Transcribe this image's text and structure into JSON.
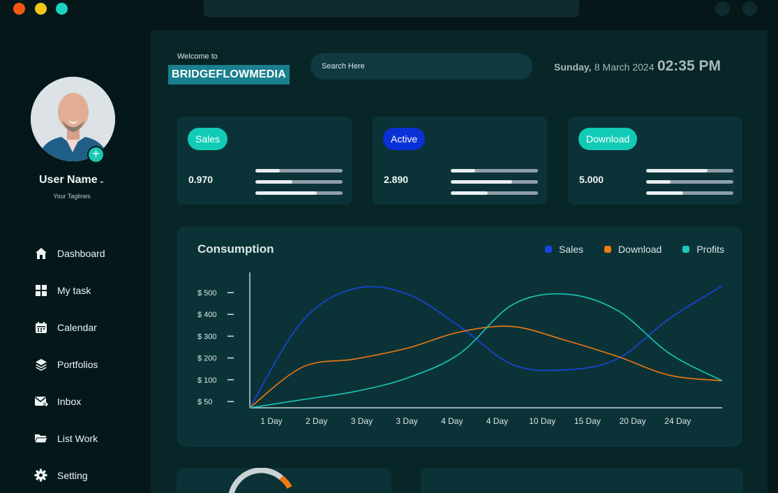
{
  "window": {
    "dot_colors": [
      "#f6580f",
      "#f5c518",
      "#19d3c0"
    ]
  },
  "user": {
    "name": "User Name",
    "tagline": "Your Taglines",
    "add_icon": "plus-icon"
  },
  "nav": [
    {
      "label": "Dashboard",
      "icon": "home-icon"
    },
    {
      "label": "My task",
      "icon": "grid-icon"
    },
    {
      "label": "Calendar",
      "icon": "calendar-icon"
    },
    {
      "label": "Portfolios",
      "icon": "layers-icon"
    },
    {
      "label": "Inbox",
      "icon": "mail-icon"
    },
    {
      "label": "List Work",
      "icon": "folder-icon"
    },
    {
      "label": "Setting",
      "icon": "gear-icon"
    }
  ],
  "header": {
    "welcome": "Welcome to",
    "brand": "BRIDGEFLOWMEDIA",
    "search_placeholder": "Search Here",
    "day": "Sunday,",
    "date": "8 March 2024",
    "time": "02:35 PM"
  },
  "stats": [
    {
      "label": "Sales",
      "value": "0.970",
      "pill_color": "#11cbb6",
      "bars": [
        0.28,
        0.42,
        0.7
      ]
    },
    {
      "label": "Active",
      "value": "2.890",
      "pill_color": "#0a31d6",
      "bars": [
        0.28,
        0.7,
        0.42
      ]
    },
    {
      "label": "Download",
      "value": "5.000",
      "pill_color": "#11cbb6",
      "bars": [
        0.7,
        0.28,
        0.42
      ]
    }
  ],
  "chart_data": {
    "type": "line",
    "title": "Consumption",
    "categories": [
      "1 Day",
      "2 Day",
      "3 Day",
      "3 Day",
      "4 Day",
      "4 Day",
      "10 Day",
      "15 Day",
      "20 Day",
      "24 Day"
    ],
    "y_ticks": [
      "$ 500",
      "$ 400",
      "$ 300",
      "$ 200",
      "$ 100",
      "$ 50"
    ],
    "legend_position": "top-right",
    "grid": false,
    "series": [
      {
        "name": "Sales",
        "color": "#1546e0",
        "values": [
          0,
          320,
          440,
          420,
          300,
          160,
          140,
          180,
          330,
          450
        ]
      },
      {
        "name": "Download",
        "color": "#f07a12",
        "values": [
          0,
          150,
          180,
          220,
          280,
          300,
          250,
          190,
          120,
          100
        ]
      },
      {
        "name": "Profits",
        "color": "#1ac8b8",
        "values": [
          0,
          30,
          60,
          110,
          200,
          380,
          420,
          360,
          200,
          100
        ]
      }
    ]
  }
}
